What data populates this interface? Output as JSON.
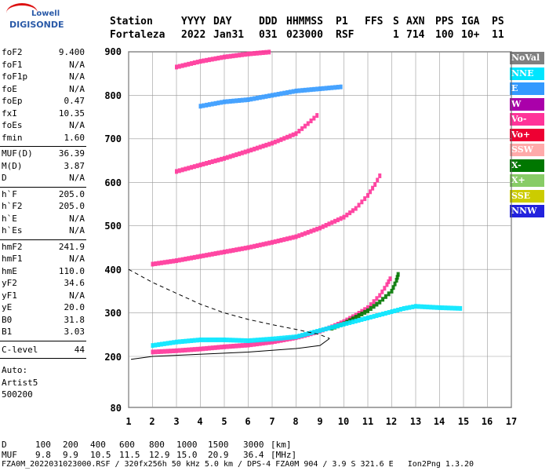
{
  "logo": {
    "brand": "Lowell",
    "product": "DIGISONDE"
  },
  "header": {
    "labels": [
      "Station",
      "YYYY",
      "DAY",
      "DDD",
      "HHMMSS",
      "P1",
      "FFS",
      "S",
      "AXN",
      "PPS",
      "IGA",
      "PS"
    ],
    "values": [
      "Fortaleza",
      "2022",
      "Jan31",
      "031",
      "023000",
      "RSF",
      "",
      "1",
      "714",
      "100",
      "10+",
      "11"
    ]
  },
  "params_group1": [
    {
      "name": "foF2",
      "value": "9.400"
    },
    {
      "name": "foF1",
      "value": "N/A"
    },
    {
      "name": "foF1p",
      "value": "N/A"
    },
    {
      "name": "foE",
      "value": "N/A"
    },
    {
      "name": "foEp",
      "value": "0.47"
    },
    {
      "name": "fxI",
      "value": "10.35"
    },
    {
      "name": "foEs",
      "value": "N/A"
    },
    {
      "name": "fmin",
      "value": "1.60"
    }
  ],
  "params_group2": [
    {
      "name": "MUF(D)",
      "value": "36.39"
    },
    {
      "name": "M(D)",
      "value": "3.87"
    },
    {
      "name": "D",
      "value": "N/A"
    }
  ],
  "params_group3": [
    {
      "name": "h`F",
      "value": "205.0"
    },
    {
      "name": "h`F2",
      "value": "205.0"
    },
    {
      "name": "h`E",
      "value": "N/A"
    },
    {
      "name": "h`Es",
      "value": "N/A"
    }
  ],
  "params_group4": [
    {
      "name": "hmF2",
      "value": "241.9"
    },
    {
      "name": "hmF1",
      "value": "N/A"
    },
    {
      "name": "hmE",
      "value": "110.0"
    },
    {
      "name": "yF2",
      "value": "34.6"
    },
    {
      "name": "yF1",
      "value": "N/A"
    },
    {
      "name": "yE",
      "value": "20.0"
    },
    {
      "name": "B0",
      "value": "31.8"
    },
    {
      "name": "B1",
      "value": "3.03"
    }
  ],
  "clevel": {
    "name": "C-level",
    "value": "44"
  },
  "auto": [
    "Auto:",
    "Artist5",
    "500200"
  ],
  "legend": [
    {
      "label": "NoVal",
      "color": "#808080"
    },
    {
      "label": "NNE",
      "color": "#00e5ff"
    },
    {
      "label": "E",
      "color": "#3399ff"
    },
    {
      "label": "W",
      "color": "#aa00aa"
    },
    {
      "label": "Vo-",
      "color": "#ff3399"
    },
    {
      "label": "Vo+",
      "color": "#ee0033"
    },
    {
      "label": "SSW",
      "color": "#ffaaaa"
    },
    {
      "label": "X-",
      "color": "#007700"
    },
    {
      "label": "X+",
      "color": "#88cc66"
    },
    {
      "label": "SSE",
      "color": "#cccc00"
    },
    {
      "label": "NNW",
      "color": "#2222dd"
    }
  ],
  "footer": {
    "d_label": "D",
    "d_values": [
      "100",
      "200",
      "400",
      "600",
      "800",
      "1000",
      "1500",
      "3000"
    ],
    "d_unit": "[km]",
    "muf_label": "MUF",
    "muf_values": [
      "9.8",
      "9.9",
      "10.5",
      "11.5",
      "12.9",
      "15.0",
      "20.9",
      "36.4"
    ],
    "muf_unit": "[MHz]",
    "info": "FZA0M_2022031023000.RSF / 320fx256h 50 kHz 5.0 km / DPS-4 FZA0M 904 / 3.9 S 321.6 E   Ion2Png 1.3.20"
  },
  "chart_data": {
    "type": "scatter",
    "xlabel": "",
    "ylabel": "",
    "x_ticks": [
      1,
      2,
      3,
      4,
      5,
      6,
      7,
      8,
      9,
      10,
      11,
      12,
      13,
      14,
      15,
      16,
      17
    ],
    "y_ticks": [
      80,
      200,
      300,
      400,
      500,
      600,
      700,
      800,
      900
    ],
    "xlim": [
      1,
      17
    ],
    "y_scale_note": "virtual height km, lower axis compressed",
    "traces": [
      {
        "name": "F-trace O",
        "color": "#ff3399",
        "points": [
          [
            2,
            210
          ],
          [
            3,
            213
          ],
          [
            4,
            217
          ],
          [
            5,
            222
          ],
          [
            6,
            226
          ],
          [
            7,
            233
          ],
          [
            8,
            243
          ],
          [
            8.5,
            250
          ],
          [
            9,
            258
          ],
          [
            9.5,
            268
          ],
          [
            10,
            280
          ],
          [
            10.5,
            295
          ],
          [
            11,
            312
          ],
          [
            11.5,
            340
          ],
          [
            11.8,
            365
          ],
          [
            12,
            385
          ]
        ]
      },
      {
        "name": "F-trace X",
        "color": "#007700",
        "points": [
          [
            9.5,
            265
          ],
          [
            10,
            275
          ],
          [
            10.5,
            290
          ],
          [
            11,
            305
          ],
          [
            11.5,
            325
          ],
          [
            12,
            350
          ],
          [
            12.2,
            375
          ],
          [
            12.3,
            395
          ]
        ]
      },
      {
        "name": "F-trace E-dir",
        "color": "#00e5ff",
        "points": [
          [
            2,
            225
          ],
          [
            3,
            233
          ],
          [
            4,
            238
          ],
          [
            5,
            238
          ],
          [
            6,
            236
          ],
          [
            7,
            240
          ],
          [
            8,
            245
          ],
          [
            12.5,
            310
          ],
          [
            13,
            315
          ],
          [
            14,
            312
          ],
          [
            15,
            310
          ]
        ]
      },
      {
        "name": "2nd hop",
        "color": "#ff3399",
        "points": [
          [
            2,
            412
          ],
          [
            3,
            420
          ],
          [
            4,
            430
          ],
          [
            5,
            440
          ],
          [
            6,
            450
          ],
          [
            7,
            462
          ],
          [
            8,
            475
          ],
          [
            9,
            495
          ],
          [
            10,
            520
          ],
          [
            10.5,
            540
          ],
          [
            11,
            570
          ],
          [
            11.3,
            595
          ],
          [
            11.6,
            625
          ]
        ]
      },
      {
        "name": "3rd hop",
        "color": "#ff3399",
        "points": [
          [
            3,
            625
          ],
          [
            4,
            640
          ],
          [
            5,
            655
          ],
          [
            6,
            672
          ],
          [
            7,
            690
          ],
          [
            8,
            712
          ],
          [
            8.5,
            735
          ],
          [
            9,
            760
          ]
        ]
      },
      {
        "name": "upper",
        "color": "#3399ff",
        "points": [
          [
            4,
            775
          ],
          [
            5,
            785
          ],
          [
            6,
            790
          ],
          [
            7,
            800
          ],
          [
            8,
            810
          ],
          [
            9,
            815
          ],
          [
            10,
            820
          ]
        ]
      },
      {
        "name": "top",
        "color": "#ff3399",
        "points": [
          [
            3,
            865
          ],
          [
            4,
            878
          ],
          [
            5,
            888
          ],
          [
            6,
            895
          ],
          [
            7,
            900
          ]
        ]
      }
    ],
    "profile": [
      [
        1.1,
        193
      ],
      [
        2,
        200
      ],
      [
        4,
        205
      ],
      [
        6,
        210
      ],
      [
        8,
        218
      ],
      [
        9,
        225
      ],
      [
        9.4,
        241
      ]
    ],
    "profile_dashed": [
      [
        1,
        400
      ],
      [
        2,
        370
      ],
      [
        3,
        345
      ],
      [
        4,
        320
      ],
      [
        5,
        300
      ],
      [
        6,
        285
      ],
      [
        7,
        273
      ],
      [
        8,
        262
      ],
      [
        9,
        250
      ],
      [
        9.4,
        241
      ]
    ]
  }
}
